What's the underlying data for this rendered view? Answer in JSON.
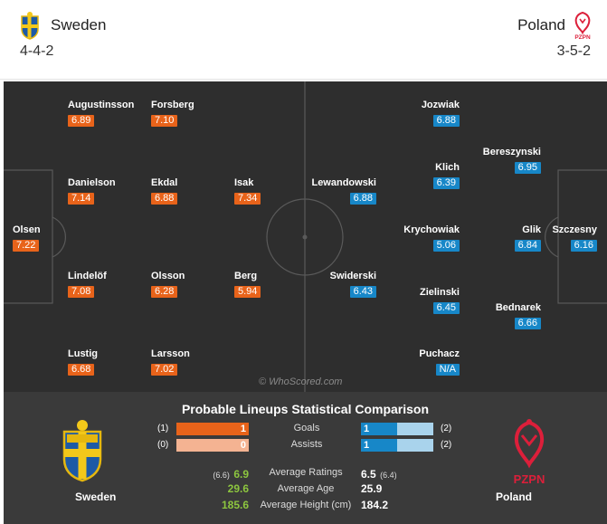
{
  "colors": {
    "home_rating": "#e8631a",
    "away_rating": "#1787c8",
    "pitch": "#2e2e2e",
    "panel": "#3a3a3a",
    "green_value": "#8dc63f"
  },
  "header": {
    "home": {
      "name": "Sweden",
      "formation": "4-4-2",
      "crest_icon": "sweden-crest-icon"
    },
    "away": {
      "name": "Poland",
      "formation": "3-5-2",
      "crest_icon": "poland-crest-icon",
      "crest_text": "PZPN"
    }
  },
  "pitch": {
    "watermark": "© WhoScored.com",
    "home_players": [
      {
        "name": "Augustinsson",
        "rating": "6.89"
      },
      {
        "name": "Forsberg",
        "rating": "7.10"
      },
      {
        "name": "Danielson",
        "rating": "7.14"
      },
      {
        "name": "Ekdal",
        "rating": "6.88"
      },
      {
        "name": "Isak",
        "rating": "7.34"
      },
      {
        "name": "Olsen",
        "rating": "7.22"
      },
      {
        "name": "Lindelöf",
        "rating": "7.08"
      },
      {
        "name": "Olsson",
        "rating": "6.28"
      },
      {
        "name": "Berg",
        "rating": "5.94"
      },
      {
        "name": "Lustig",
        "rating": "6.68"
      },
      {
        "name": "Larsson",
        "rating": "7.02"
      }
    ],
    "away_players": [
      {
        "name": "Jozwiak",
        "rating": "6.88"
      },
      {
        "name": "Bereszynski",
        "rating": "6.95"
      },
      {
        "name": "Lewandowski",
        "rating": "6.88"
      },
      {
        "name": "Klich",
        "rating": "6.39"
      },
      {
        "name": "Krychowiak",
        "rating": "5.06"
      },
      {
        "name": "Glik",
        "rating": "6.84"
      },
      {
        "name": "Szczesny",
        "rating": "6.16"
      },
      {
        "name": "Swiderski",
        "rating": "6.43"
      },
      {
        "name": "Zielinski",
        "rating": "6.45"
      },
      {
        "name": "Bednarek",
        "rating": "6.66"
      },
      {
        "name": "Puchacz",
        "rating": "N/A"
      }
    ]
  },
  "comparison": {
    "title": "Probable Lineups Statistical Comparison",
    "home_team": "Sweden",
    "away_team": "Poland",
    "bars": [
      {
        "label": "Goals",
        "home_paren": "(1)",
        "home_value": "1",
        "home_fraction": 1.0,
        "away_paren": "(2)",
        "away_value": "1",
        "away_fraction": 0.5
      },
      {
        "label": "Assists",
        "home_paren": "(0)",
        "home_value": "0",
        "home_fraction": 0.0,
        "away_paren": "(2)",
        "away_value": "1",
        "away_fraction": 0.5
      }
    ],
    "averages": [
      {
        "label": "Average Ratings",
        "home_prefix": "(6.6)",
        "home_value": "6.9",
        "away_value": "6.5",
        "away_suffix": "(6.4)"
      },
      {
        "label": "Average Age",
        "home_value": "29.6",
        "away_value": "25.9"
      },
      {
        "label": "Average Height (cm)",
        "home_value": "185.6",
        "away_value": "184.2"
      }
    ]
  }
}
